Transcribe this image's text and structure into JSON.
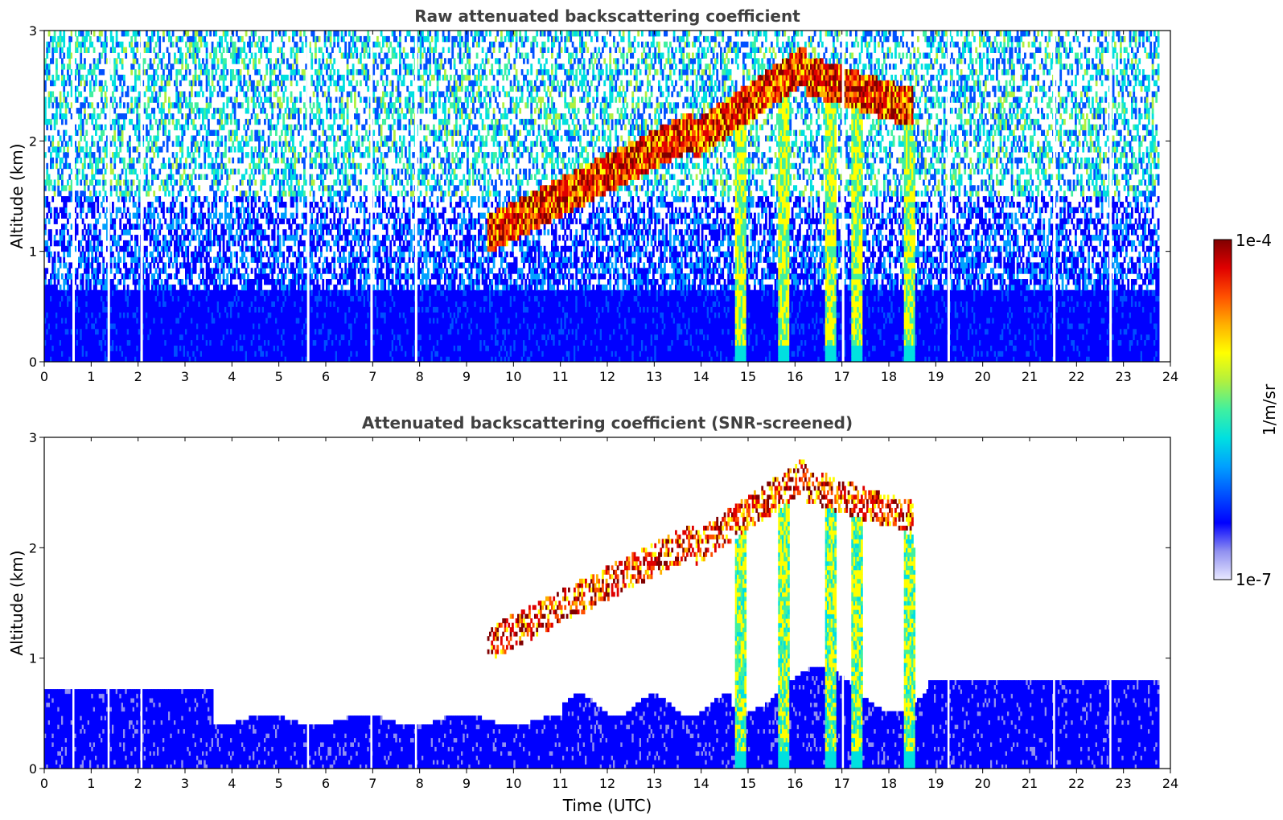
{
  "chart_data": [
    {
      "type": "heatmap",
      "title": "Raw attenuated backscattering coefficient",
      "ylabel": "Altitude (km)",
      "xlabel": "",
      "xlim": [
        0,
        24
      ],
      "ylim": [
        0,
        3
      ],
      "x_ticks": [
        "0",
        "1",
        "2",
        "3",
        "4",
        "5",
        "6",
        "7",
        "8",
        "9",
        "10",
        "11",
        "12",
        "13",
        "14",
        "15",
        "16",
        "17",
        "18",
        "19",
        "20",
        "21",
        "22",
        "23",
        "24"
      ],
      "y_ticks": [
        "0",
        "1",
        "2",
        "3"
      ],
      "data_end_time": 23.75,
      "boundary_layer_top_km": 0.65,
      "cloud_layers": [
        {
          "start": 9.4,
          "end": 13.8,
          "base_start": 0.95,
          "base_end": 1.9
        },
        {
          "start": 13.8,
          "end": 16.2,
          "base_start": 1.8,
          "base_end": 2.5
        },
        {
          "start": 16.2,
          "end": 18.5,
          "base_start": 2.4,
          "base_end": 2.1
        }
      ],
      "precipitation_shafts": [
        14.8,
        15.75,
        16.75,
        17.3,
        18.4
      ]
    },
    {
      "type": "heatmap",
      "title": "Attenuated backscattering coefficient (SNR-screened)",
      "ylabel": "Altitude (km)",
      "xlabel": "Time (UTC)",
      "xlim": [
        0,
        24
      ],
      "ylim": [
        0,
        3
      ],
      "x_ticks": [
        "0",
        "1",
        "2",
        "3",
        "4",
        "5",
        "6",
        "7",
        "8",
        "9",
        "10",
        "11",
        "12",
        "13",
        "14",
        "15",
        "16",
        "17",
        "18",
        "19",
        "20",
        "21",
        "22",
        "23",
        "24"
      ],
      "y_ticks": [
        "0",
        "1",
        "2",
        "3"
      ],
      "data_end_time": 23.75
    }
  ],
  "colorbar": {
    "max_label": "1e-4",
    "min_label": "1e-7",
    "unit_label": "1/m/sr",
    "colors": [
      "#e8e8ff",
      "#9090f0",
      "#0000ff",
      "#0050ff",
      "#00a0ff",
      "#00e0e0",
      "#40f0a0",
      "#b0f040",
      "#ffff00",
      "#ffb000",
      "#ff5000",
      "#e00000",
      "#800000"
    ]
  }
}
